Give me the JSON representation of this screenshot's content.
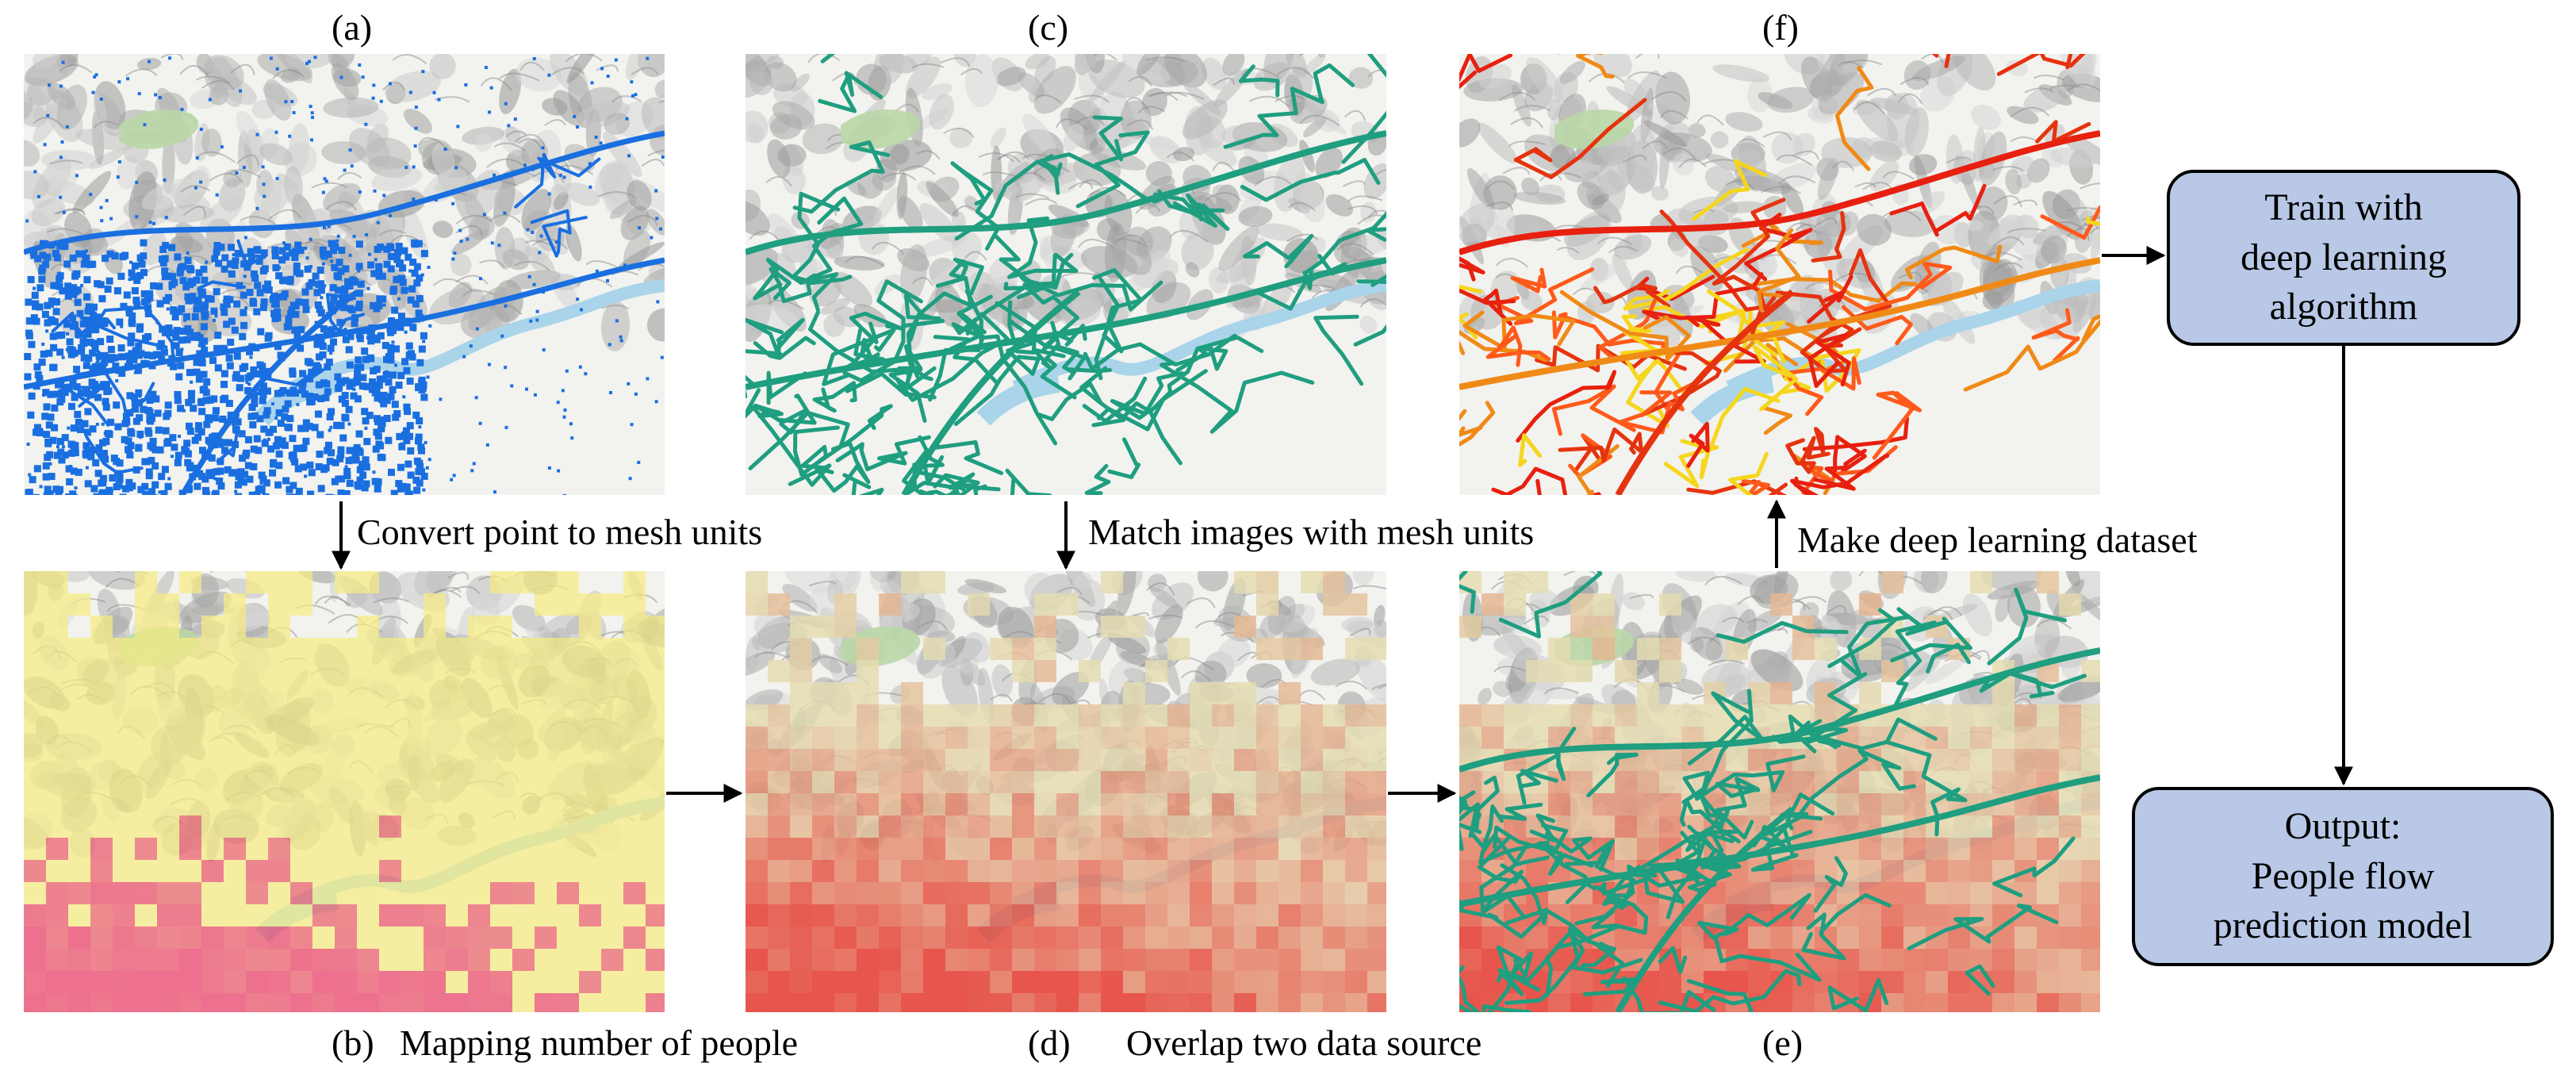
{
  "panels": {
    "a": {
      "letter": "(a)"
    },
    "b": {
      "letter": "(b)",
      "caption": "Mapping number of people"
    },
    "c": {
      "letter": "(c)"
    },
    "d": {
      "letter": "(d)",
      "caption": "Overlap two data source"
    },
    "e": {
      "letter": "(e)"
    },
    "f": {
      "letter": "(f)"
    }
  },
  "steps": {
    "a_to_b": "Convert point to mesh units",
    "c_to_d": "Match images with mesh units",
    "e_to_f": "Make deep learning dataset"
  },
  "boxes": {
    "train": [
      "Train with",
      "deep learning",
      "algorithm"
    ],
    "output": [
      "Output:",
      "People flow",
      "prediction model"
    ]
  },
  "colors": {
    "points": "#1a6fe0",
    "roads": "#1f9e80",
    "heat_low": "#f5eb82",
    "heat_high": "#e43a32",
    "roads_hot": "#e8200f",
    "box_fill": "#b8c8e6"
  }
}
